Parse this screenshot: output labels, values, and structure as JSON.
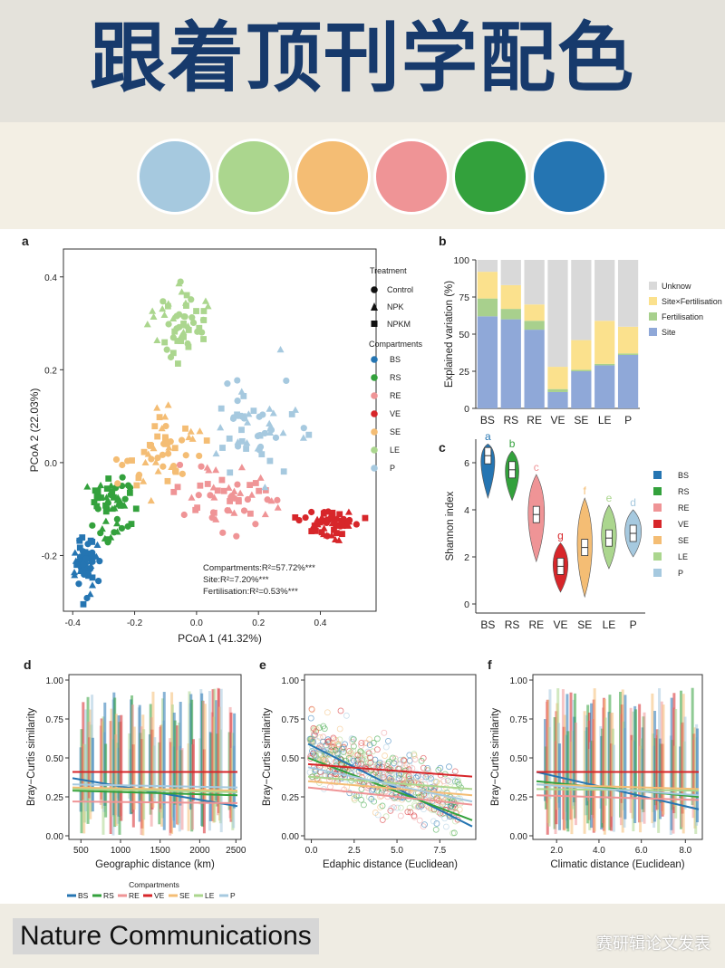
{
  "header": {
    "title": "跟着顶刊学配色"
  },
  "palette": [
    {
      "name": "light-blue",
      "color": "#a6c9df"
    },
    {
      "name": "light-green",
      "color": "#abd68e"
    },
    {
      "name": "orange",
      "color": "#f4bd74"
    },
    {
      "name": "pink",
      "color": "#ef9496"
    },
    {
      "name": "green",
      "color": "#33a13c"
    },
    {
      "name": "blue",
      "color": "#2575b2"
    }
  ],
  "footer": {
    "journal": "Nature Communications",
    "watermark": "赛研辑论文发表"
  },
  "chart_data": [
    {
      "panel": "a",
      "type": "scatter",
      "xlabel": "PCoA 1 (41.32%)",
      "ylabel": "PCoA 2 (22.03%)",
      "xticks": [
        "-0.4",
        "-0.2",
        "0.0",
        "0.2",
        "0.4"
      ],
      "yticks": [
        "0.4",
        "0.2",
        "0.0",
        "-0.2"
      ],
      "legend_treatment_title": "Treatment",
      "treatments": [
        "Control",
        "NPK",
        "NPKM"
      ],
      "legend_compartment_title": "Compartments",
      "compartments": [
        "BS",
        "RS",
        "RE",
        "VE",
        "SE",
        "LE",
        "P"
      ],
      "compartment_colors": [
        "#2575b2",
        "#33a13c",
        "#ef9496",
        "#d7262a",
        "#f4bd74",
        "#abd68e",
        "#a6c9df"
      ],
      "centroids": [
        {
          "x": -0.36,
          "y": -0.22
        },
        {
          "x": -0.27,
          "y": -0.1
        },
        {
          "x": 0.1,
          "y": -0.08
        },
        {
          "x": 0.42,
          "y": -0.13
        },
        {
          "x": -0.1,
          "y": 0.02
        },
        {
          "x": -0.05,
          "y": 0.3
        },
        {
          "x": 0.2,
          "y": 0.08
        }
      ],
      "stats": [
        "Compartments:R²=57.72%***",
        "Site:R²=7.20%***",
        "Fertilisation:R²=0.53%***"
      ]
    },
    {
      "panel": "b",
      "type": "bar",
      "ylabel": "Explained variation (%)",
      "categories": [
        "BS",
        "RS",
        "RE",
        "VE",
        "SE",
        "LE",
        "P"
      ],
      "yticks": [
        "100",
        "75",
        "50",
        "25",
        "0"
      ],
      "series": [
        {
          "name": "Site",
          "color": "#8fa8d8",
          "values": [
            62,
            60,
            53,
            11,
            25,
            29,
            36
          ]
        },
        {
          "name": "Fertilisation",
          "color": "#a8d08d",
          "values": [
            12,
            7,
            6,
            2,
            1,
            1,
            1
          ]
        },
        {
          "name": "Site×Fertilisation",
          "color": "#fbe18d",
          "values": [
            18,
            16,
            11,
            15,
            20,
            29,
            18
          ]
        },
        {
          "name": "Unknow",
          "color": "#d9d9d9",
          "values": [
            8,
            17,
            30,
            72,
            54,
            41,
            45
          ]
        }
      ]
    },
    {
      "panel": "c",
      "type": "violin",
      "ylabel": "Shannon index",
      "categories": [
        "BS",
        "RS",
        "RE",
        "VE",
        "SE",
        "LE",
        "P"
      ],
      "yticks": [
        "6",
        "4",
        "2",
        "0"
      ],
      "letters": [
        "a",
        "b",
        "c",
        "g",
        "f",
        "e",
        "d"
      ],
      "medians": [
        6.3,
        5.7,
        3.8,
        1.6,
        2.4,
        2.8,
        3.0
      ],
      "colors": [
        "#2575b2",
        "#33a13c",
        "#ef9496",
        "#d7262a",
        "#f4bd74",
        "#abd68e",
        "#a6c9df"
      ]
    },
    {
      "panel": "d",
      "type": "scatter",
      "xlabel": "Geographic distance (km)",
      "ylabel": "Bray−Curtis similarity",
      "xticks": [
        "500",
        "1000",
        "1500",
        "2000",
        "2500"
      ],
      "yticks": [
        "1.00",
        "0.75",
        "0.50",
        "0.25",
        "0.00"
      ]
    },
    {
      "panel": "e",
      "type": "scatter",
      "xlabel": "Edaphic distance (Euclidean)",
      "ylabel": "Bray−Curtis similarity",
      "xticks": [
        "0.0",
        "2.5",
        "5.0",
        "7.5"
      ],
      "yticks": [
        "1.00",
        "0.75",
        "0.50",
        "0.25",
        "0.00"
      ]
    },
    {
      "panel": "f",
      "type": "scatter",
      "xlabel": "Climatic distance (Euclidean)",
      "ylabel": "Bray−Curtis similarity",
      "xticks": [
        "2.0",
        "4.0",
        "6.0",
        "8.0"
      ],
      "yticks": [
        "1.00",
        "0.75",
        "0.50",
        "0.25",
        "0.00"
      ]
    }
  ],
  "legend_bottom": {
    "title": "Compartments",
    "items": [
      "BS",
      "RS",
      "RE",
      "VE",
      "SE",
      "LE",
      "P"
    ]
  }
}
